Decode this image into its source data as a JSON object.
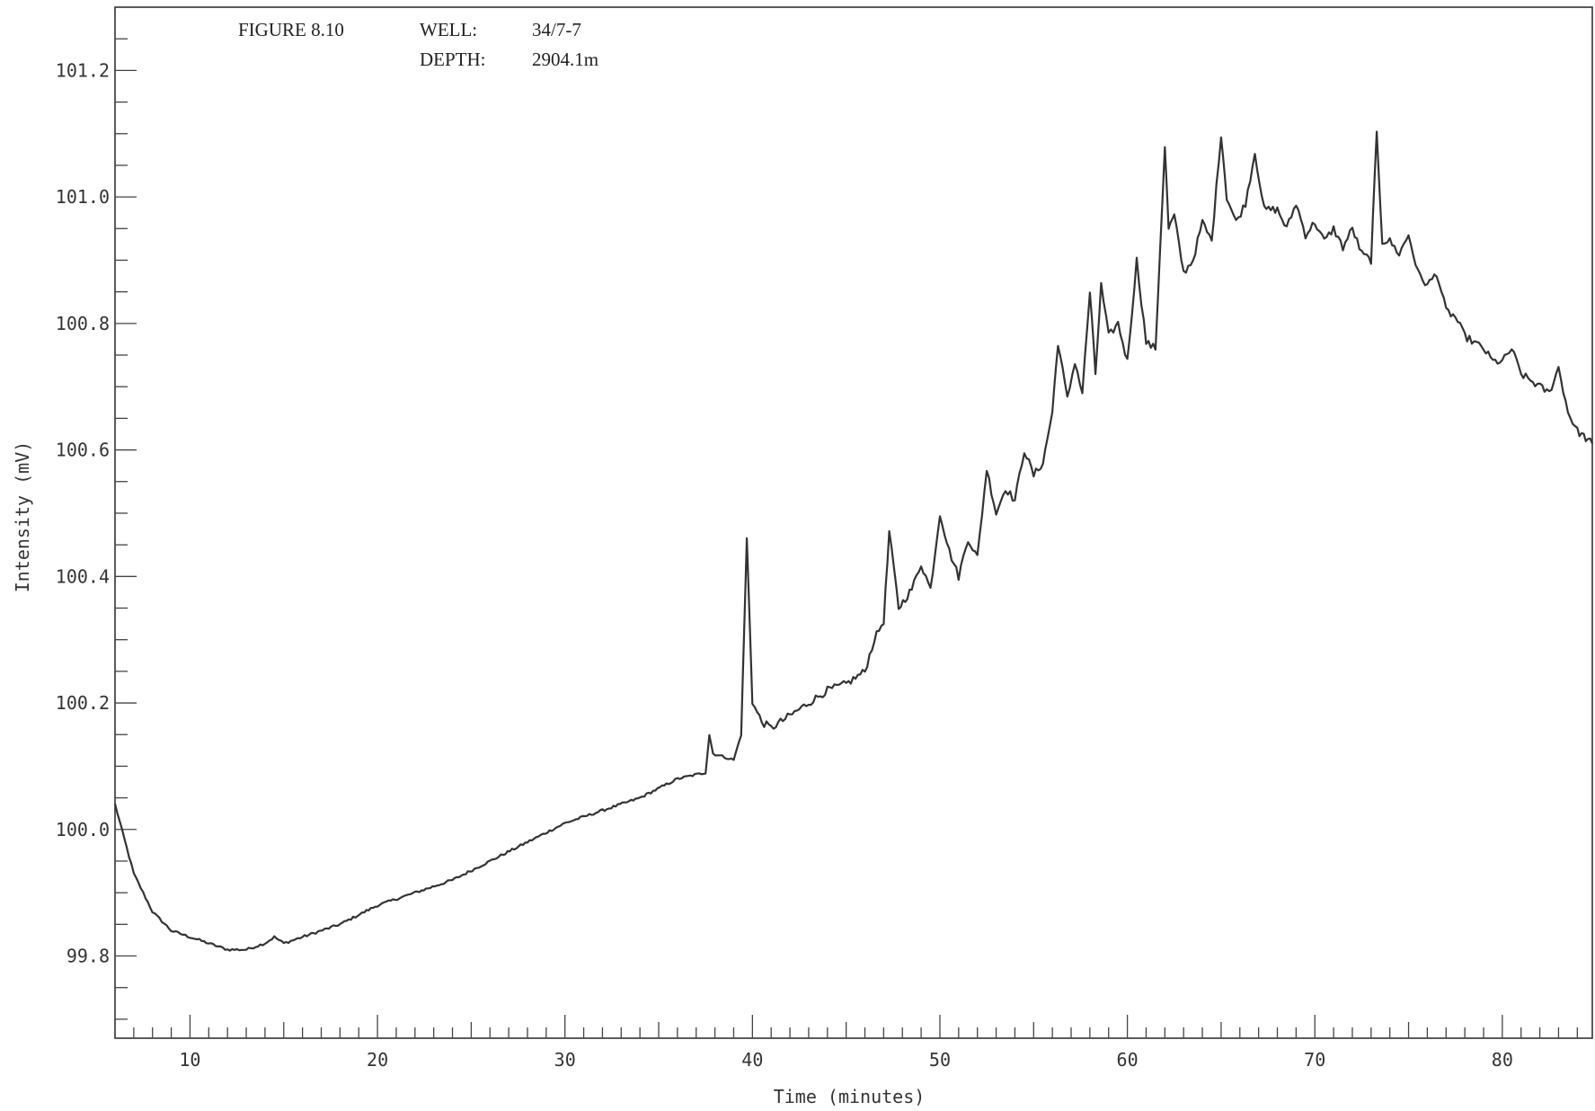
{
  "header": {
    "figure": "FIGURE 8.10",
    "well_label": "WELL:",
    "well_value": "34/7-7",
    "depth_label": "DEPTH:",
    "depth_value": "2904.1m"
  },
  "chart_data": {
    "type": "line",
    "xlabel": "Time (minutes)",
    "ylabel": "Intensity (mV)",
    "xlim": [
      6,
      84.8
    ],
    "ylim": [
      99.67,
      101.3
    ],
    "x_ticks": [
      10,
      20,
      30,
      40,
      50,
      60,
      70,
      80
    ],
    "x_tick_labels": [
      "10",
      "20",
      "30",
      "40",
      "50",
      "60",
      "70",
      "80"
    ],
    "y_ticks": [
      99.8,
      100.0,
      100.2,
      100.4,
      100.6,
      100.8,
      101.0,
      101.2
    ],
    "y_tick_labels": [
      "99.8",
      "100.0",
      "100.2",
      "100.4",
      "100.6",
      "100.8",
      "101.0",
      "101.2"
    ],
    "grid": false,
    "series": [
      {
        "x": [
          6.0,
          7.0,
          8.0,
          9.0,
          10.0,
          11.0,
          12.0,
          13.0,
          14.0,
          14.5,
          15.0,
          16.0,
          18.0,
          20.0,
          22.0,
          24.0,
          26.0,
          28.0,
          30.0,
          32.0,
          34.0,
          36.0,
          37.5,
          37.7,
          37.9,
          39.0,
          39.4,
          39.7,
          40.0,
          40.5,
          41.0,
          42.0,
          43.0,
          44.0,
          45.0,
          46.0,
          46.5,
          47.0,
          47.3,
          47.8,
          48.5,
          49.0,
          49.5,
          50.0,
          50.5,
          51.0,
          51.5,
          52.0,
          52.5,
          53.0,
          53.5,
          54.0,
          54.5,
          55.0,
          55.5,
          56.0,
          56.3,
          56.8,
          57.2,
          57.6,
          58.0,
          58.3,
          58.6,
          59.0,
          59.5,
          60.0,
          60.5,
          61.0,
          61.5,
          62.0,
          62.2,
          62.5,
          63.0,
          63.5,
          64.0,
          64.5,
          65.0,
          65.3,
          65.8,
          66.3,
          66.8,
          67.3,
          68.0,
          68.5,
          69.0,
          69.5,
          70.0,
          70.5,
          71.0,
          71.5,
          72.0,
          72.5,
          73.0,
          73.3,
          73.6,
          74.0,
          74.5,
          75.0,
          75.5,
          76.0,
          76.5,
          77.0,
          77.5,
          78.0,
          78.5,
          79.0,
          79.5,
          80.0,
          80.5,
          81.0,
          81.5,
          82.0,
          82.5,
          83.0,
          83.5,
          84.0,
          84.8
        ],
        "y": [
          100.04,
          99.93,
          99.87,
          99.84,
          99.83,
          99.82,
          99.81,
          99.81,
          99.82,
          99.83,
          99.82,
          99.83,
          99.85,
          99.88,
          99.9,
          99.92,
          99.95,
          99.98,
          100.01,
          100.03,
          100.05,
          100.08,
          100.09,
          100.15,
          100.12,
          100.11,
          100.15,
          100.46,
          100.2,
          100.17,
          100.16,
          100.18,
          100.2,
          100.22,
          100.23,
          100.25,
          100.3,
          100.33,
          100.47,
          100.35,
          100.38,
          100.42,
          100.38,
          100.5,
          100.44,
          100.4,
          100.46,
          100.43,
          100.57,
          100.5,
          100.54,
          100.52,
          100.6,
          100.56,
          100.58,
          100.66,
          100.77,
          100.68,
          100.74,
          100.69,
          100.85,
          100.72,
          100.86,
          100.78,
          100.8,
          100.74,
          100.9,
          100.77,
          100.76,
          101.08,
          100.95,
          100.97,
          100.88,
          100.9,
          100.96,
          100.93,
          101.1,
          101.0,
          100.96,
          100.99,
          101.07,
          100.98,
          100.98,
          100.95,
          100.99,
          100.94,
          100.96,
          100.93,
          100.95,
          100.92,
          100.95,
          100.91,
          100.9,
          101.1,
          100.93,
          100.93,
          100.91,
          100.94,
          100.88,
          100.86,
          100.88,
          100.82,
          100.81,
          100.78,
          100.77,
          100.76,
          100.74,
          100.74,
          100.76,
          100.72,
          100.71,
          100.7,
          100.69,
          100.73,
          100.66,
          100.63,
          100.61
        ]
      }
    ]
  }
}
